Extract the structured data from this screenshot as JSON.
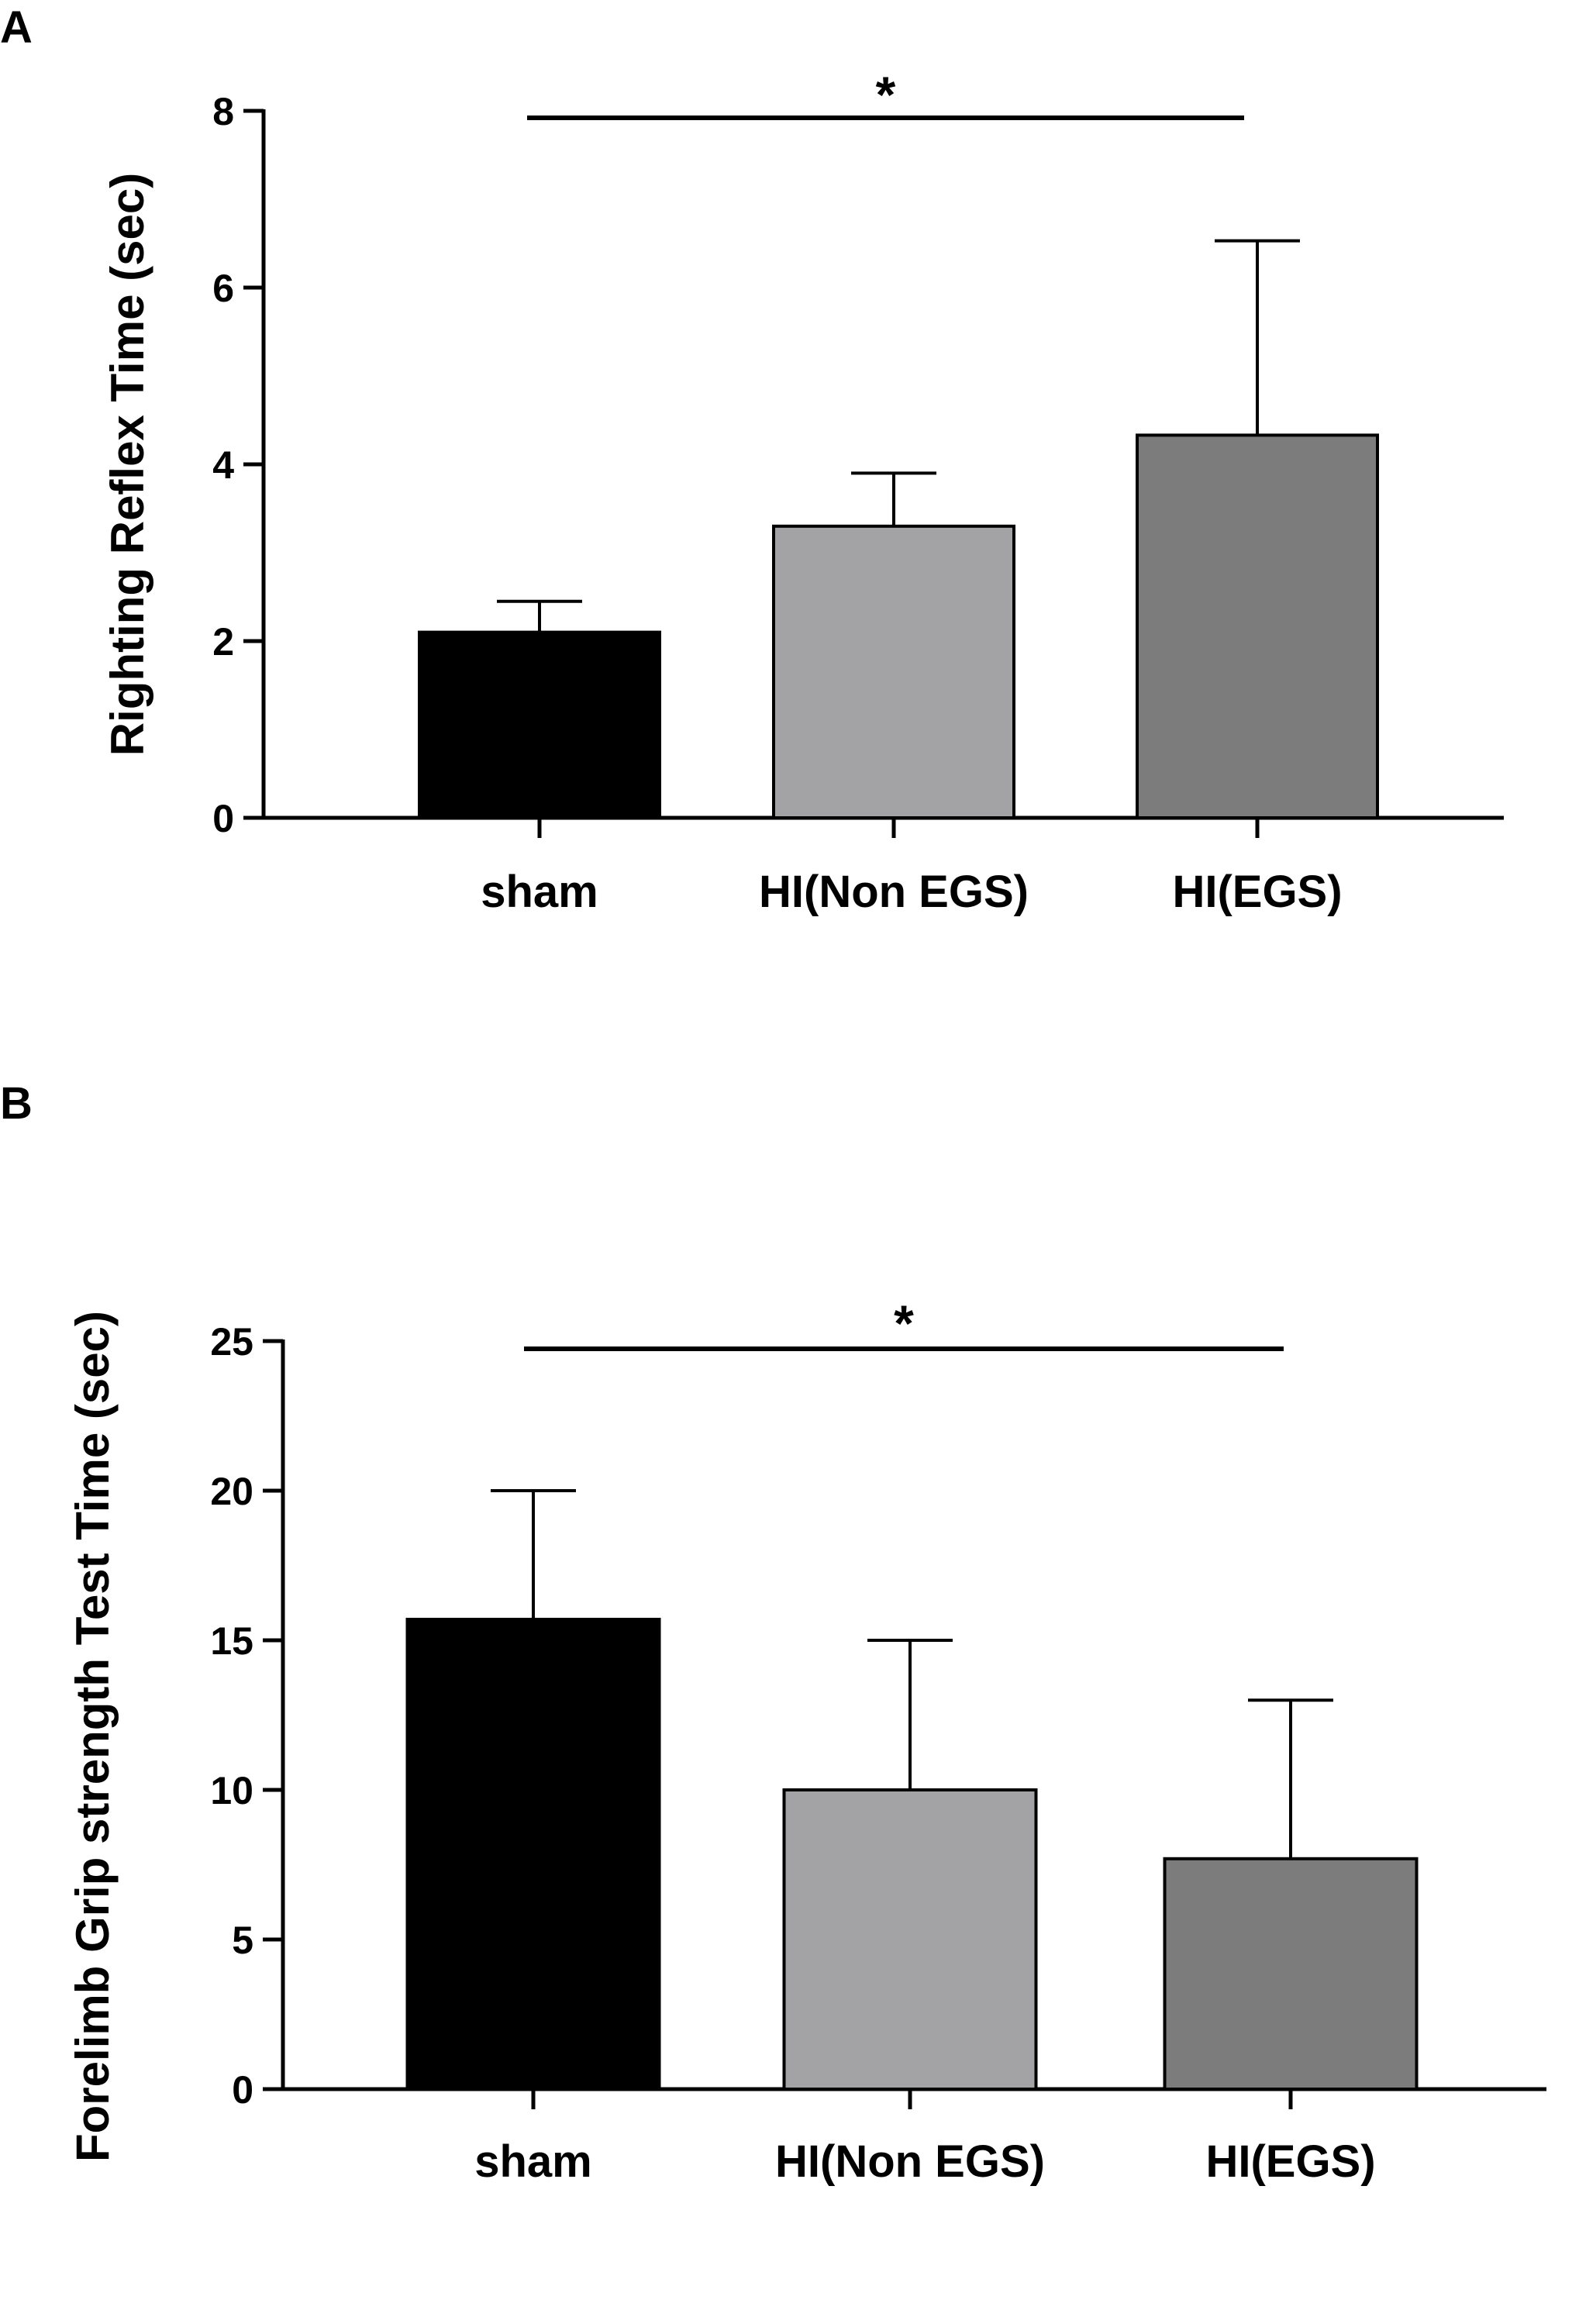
{
  "chart_data": [
    {
      "panel_label": "A",
      "type": "bar",
      "ylabel": "Righting Reflex Time (sec)",
      "xlabel": "",
      "categories": [
        "sham",
        "HI(Non EGS)",
        "HI(EGS)"
      ],
      "values": [
        2.1,
        3.3,
        4.33
      ],
      "errors": [
        0.35,
        0.6,
        2.2
      ],
      "colors": [
        "#000000",
        "#a3a3a5",
        "#7c7c7c"
      ],
      "ylim": [
        0,
        8
      ],
      "yticks": [
        0,
        2,
        4,
        6,
        8
      ],
      "significance": {
        "label": "*",
        "from": "sham",
        "to": "HI(EGS)"
      },
      "grid": false
    },
    {
      "panel_label": "B",
      "type": "bar",
      "ylabel": "Forelimb Grip strength Test Time (sec)",
      "xlabel": "",
      "categories": [
        "sham",
        "HI(Non EGS)",
        "HI(EGS)"
      ],
      "values": [
        15.7,
        10.0,
        7.7
      ],
      "errors": [
        4.3,
        5.0,
        5.3
      ],
      "colors": [
        "#000000",
        "#a3a3a5",
        "#7c7c7c"
      ],
      "ylim": [
        0,
        25
      ],
      "yticks": [
        0,
        5,
        10,
        15,
        20,
        25
      ],
      "significance": {
        "label": "*",
        "from": "sham",
        "to": "HI(EGS)"
      },
      "grid": false
    }
  ]
}
